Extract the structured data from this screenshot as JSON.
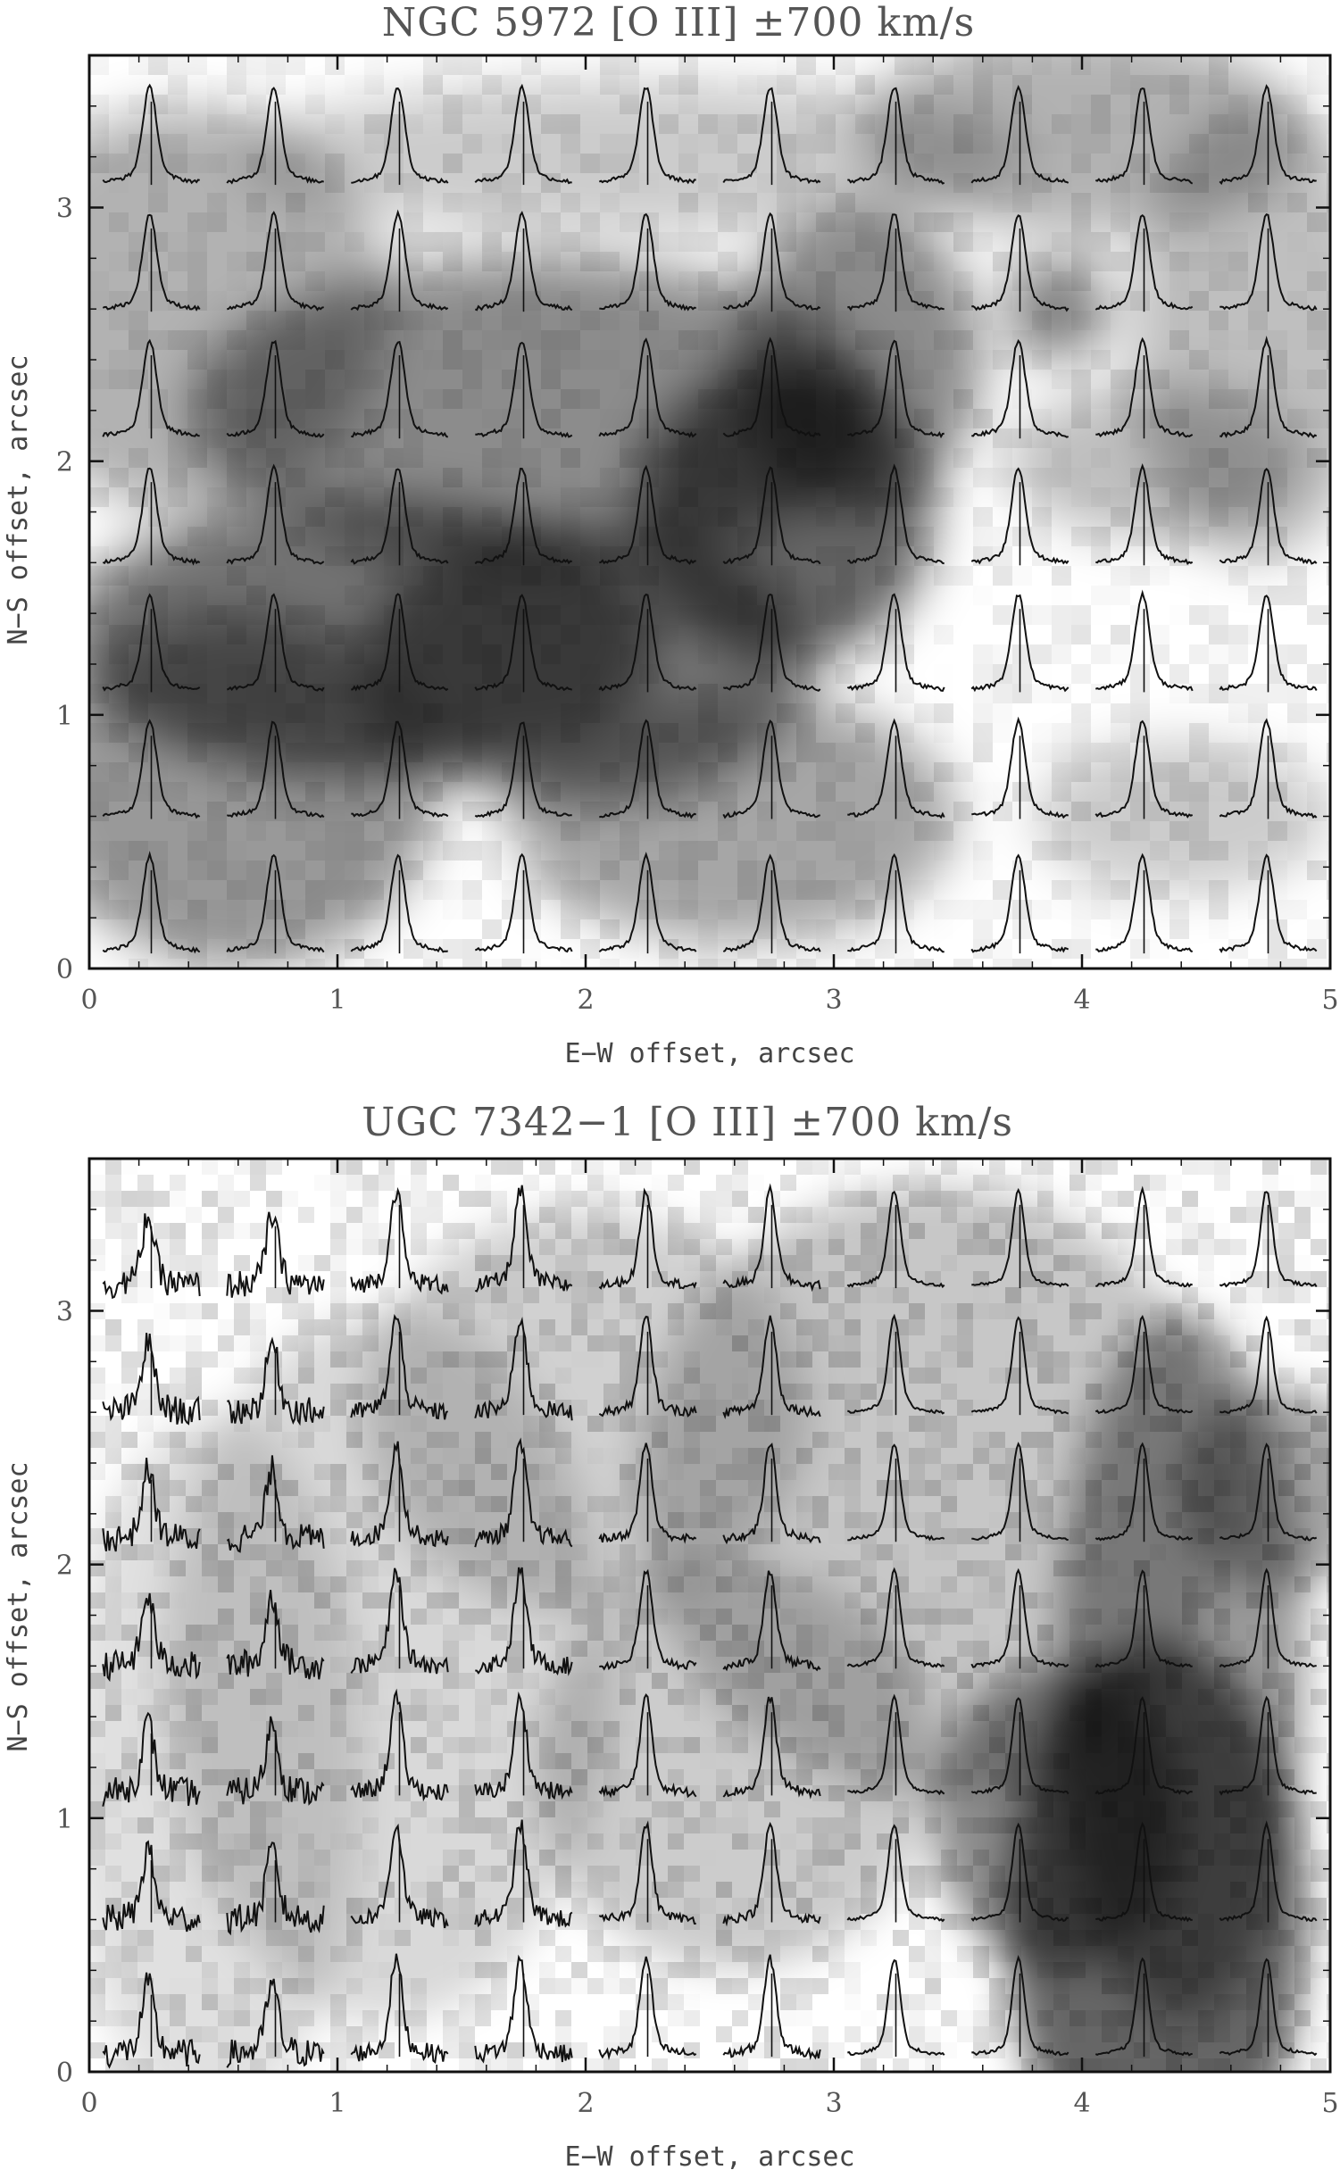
{
  "chart_data": [
    {
      "type": "heatmap",
      "title": "NGC 5972 [O III] ±700 km/s",
      "xlabel": "E−W offset, arcsec",
      "ylabel": "N−S offset, arcsec",
      "xlim": [
        0,
        5
      ],
      "ylim": [
        0,
        3.6
      ],
      "xticks": [
        0,
        1,
        2,
        3,
        4,
        5
      ],
      "yticks": [
        0,
        1,
        2,
        3
      ],
      "grid": false,
      "overlay": "spectra grid",
      "spectra_cols": 10,
      "spectra_rows": 7,
      "spectrum_col_centers": [
        0.25,
        0.75,
        1.25,
        1.75,
        2.25,
        2.75,
        3.25,
        3.75,
        4.25,
        4.75
      ],
      "spectrum_row_baselines": [
        0.07,
        0.6,
        1.1,
        1.6,
        2.1,
        2.6,
        3.1
      ],
      "image_background": "grayscale intensity map"
    },
    {
      "type": "heatmap",
      "title": "UGC 7342−1 [O III] ±700 km/s",
      "xlabel": "E−W offset, arcsec",
      "ylabel": "N−S offset, arcsec",
      "xlim": [
        0,
        5
      ],
      "ylim": [
        0,
        3.6
      ],
      "xticks": [
        0,
        1,
        2,
        3,
        4,
        5
      ],
      "yticks": [
        0,
        1,
        2,
        3
      ],
      "grid": false,
      "overlay": "spectra grid",
      "spectra_cols": 10,
      "spectra_rows": 7,
      "spectrum_col_centers": [
        0.25,
        0.75,
        1.25,
        1.75,
        2.25,
        2.75,
        3.25,
        3.75,
        4.25,
        4.75
      ],
      "spectrum_row_baselines": [
        0.07,
        0.6,
        1.1,
        1.6,
        2.1,
        2.6,
        3.1
      ],
      "image_background": "grayscale intensity map"
    }
  ]
}
